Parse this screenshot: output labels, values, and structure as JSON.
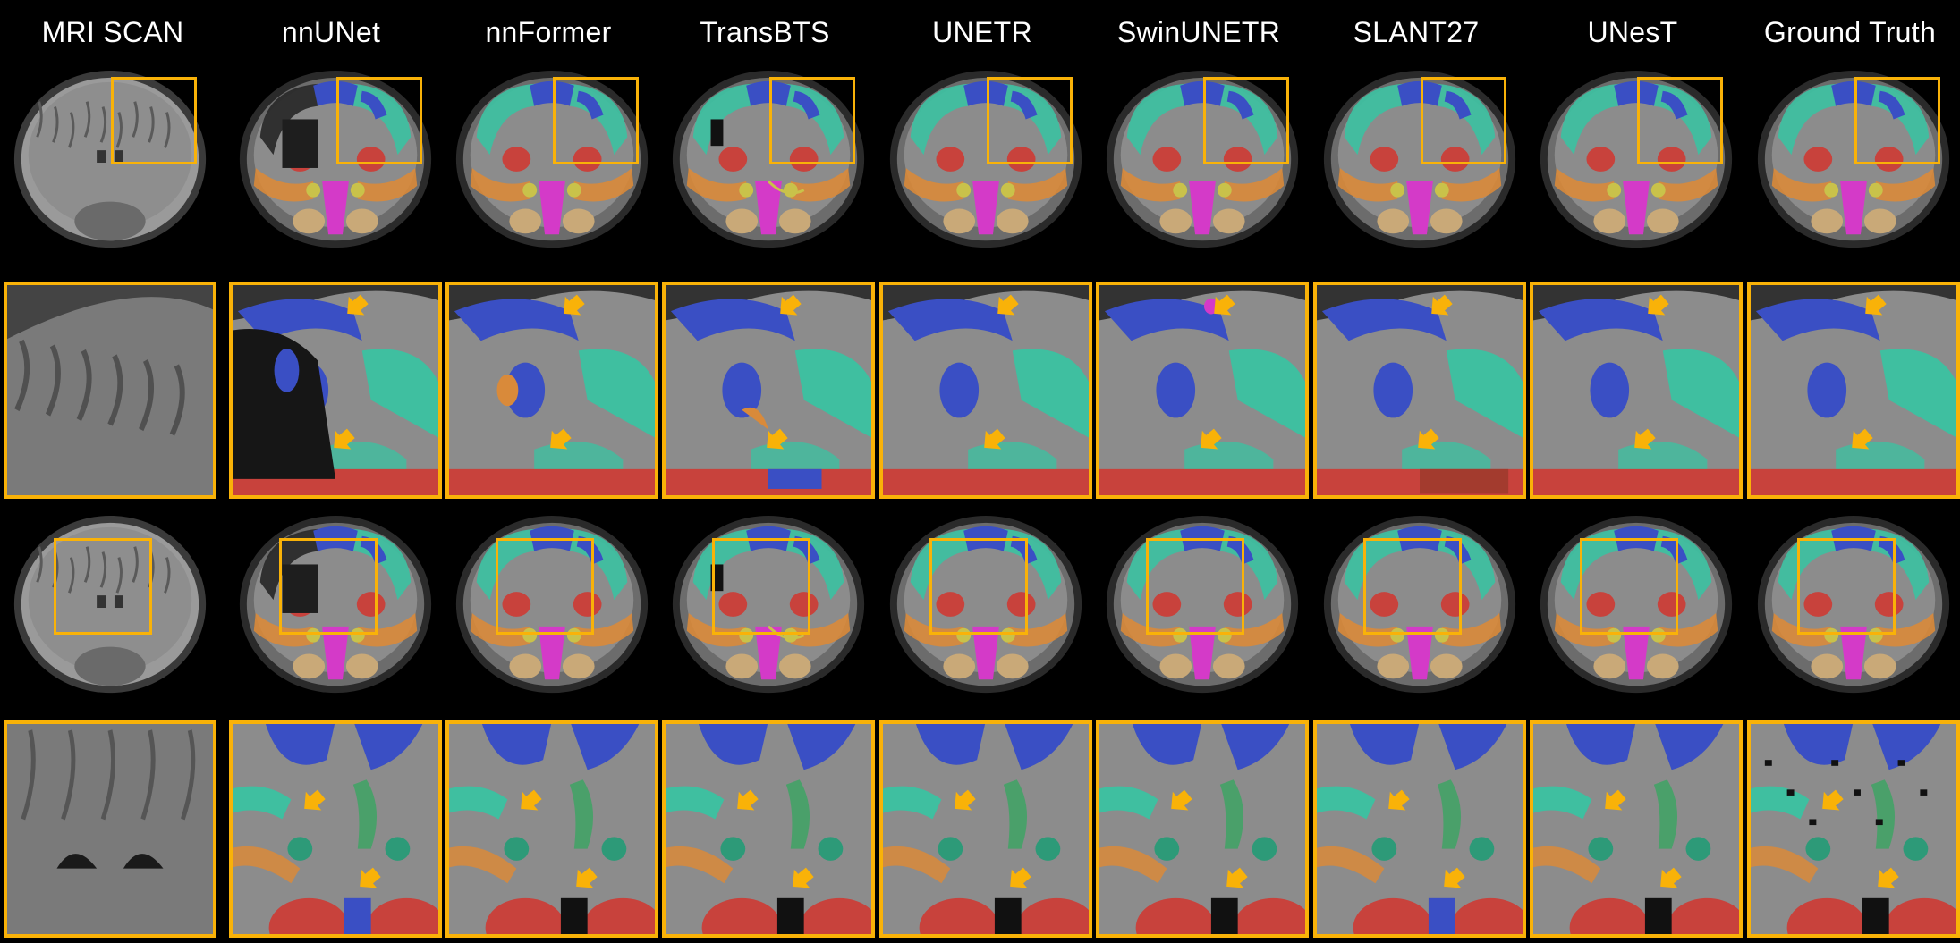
{
  "figure": {
    "columns": [
      {
        "label": "MRI SCAN"
      },
      {
        "label": "nnUNet"
      },
      {
        "label": "nnFormer"
      },
      {
        "label": "TransBTS"
      },
      {
        "label": "UNETR"
      },
      {
        "label": "SwinUNETR"
      },
      {
        "label": "SLANT27"
      },
      {
        "label": "UNesT"
      },
      {
        "label": "Ground Truth"
      }
    ],
    "rows": [
      {
        "name": "coronal-slice-1"
      },
      {
        "name": "zoom-slice-1"
      },
      {
        "name": "coronal-slice-2"
      },
      {
        "name": "zoom-slice-2"
      }
    ],
    "colors": {
      "highlight": "#f9b208",
      "background": "#000000",
      "gray_matter": "#8c8c8c",
      "blue_region": "#3a4fc4",
      "teal_region": "#3fbfa0",
      "red_region": "#c8423c",
      "magenta_region": "#d43ac8",
      "orange_region": "#d98a3a",
      "yellow_region": "#c9c24a",
      "tan_region": "#c9a978"
    }
  }
}
